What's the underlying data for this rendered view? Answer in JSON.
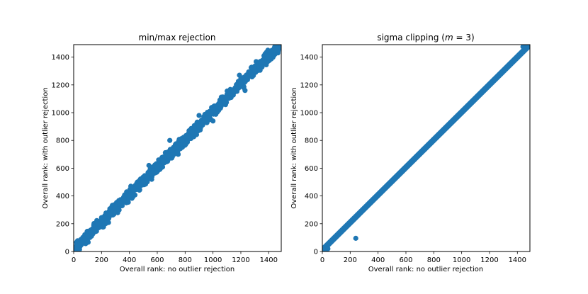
{
  "chart_data": [
    {
      "type": "scatter",
      "title": "min/max rejection",
      "xlabel": "Overall rank: no outlier rejection",
      "ylabel": "Overall rank: with outlier rejection",
      "xlim": [
        0,
        1490
      ],
      "ylim": [
        0,
        1490
      ],
      "xticks": [
        0,
        200,
        400,
        600,
        800,
        1000,
        1200,
        1400
      ],
      "yticks": [
        0,
        200,
        400,
        600,
        800,
        1000,
        1200,
        1400
      ],
      "grid": false,
      "marker_color": "#1f77b4",
      "series": [
        {
          "points_description_sample": [
            [
              0,
              15
            ],
            [
              20,
              30
            ],
            [
              40,
              45
            ],
            [
              60,
              70
            ],
            [
              80,
              90
            ],
            [
              100,
              110
            ],
            [
              120,
              140
            ],
            [
              150,
              155
            ],
            [
              180,
              200
            ],
            [
              200,
              230
            ],
            [
              230,
              240
            ],
            [
              260,
              270
            ],
            [
              300,
              310
            ],
            [
              330,
              350
            ],
            [
              360,
              380
            ],
            [
              400,
              400
            ],
            [
              430,
              450
            ],
            [
              460,
              470
            ],
            [
              500,
              500
            ],
            [
              530,
              540
            ],
            [
              560,
              560
            ],
            [
              600,
              610
            ],
            [
              640,
              650
            ],
            [
              680,
              690
            ],
            [
              700,
              730
            ],
            [
              740,
              750
            ],
            [
              780,
              800
            ],
            [
              820,
              830
            ],
            [
              850,
              860
            ],
            [
              900,
              900
            ],
            [
              940,
              950
            ],
            [
              980,
              1000
            ],
            [
              1000,
              1020
            ],
            [
              1050,
              1060
            ],
            [
              1100,
              1110
            ],
            [
              1150,
              1160
            ],
            [
              1200,
              1210
            ],
            [
              1250,
              1260
            ],
            [
              1300,
              1310
            ],
            [
              1350,
              1360
            ],
            [
              1400,
              1400
            ],
            [
              1450,
              1450
            ],
            [
              1490,
              1480
            ],
            [
              410,
              470
            ],
            [
              540,
              620
            ],
            [
              560,
              520
            ],
            [
              690,
              800
            ],
            [
              750,
              700
            ],
            [
              900,
              980
            ],
            [
              1000,
              940
            ],
            [
              1190,
              1270
            ],
            [
              1230,
              1160
            ]
          ]
        }
      ]
    },
    {
      "type": "scatter",
      "title": "sigma clipping (m = 3)",
      "title_plain": "sigma clipping (",
      "title_italic": "m",
      "title_tail": " = 3)",
      "xlabel": "Overall rank: no outlier rejection",
      "ylabel": "Overall rank: with outlier rejection",
      "xlim": [
        0,
        1490
      ],
      "ylim": [
        0,
        1490
      ],
      "xticks": [
        0,
        200,
        400,
        600,
        800,
        1000,
        1200,
        1400
      ],
      "yticks": [
        0,
        200,
        400,
        600,
        800,
        1000,
        1200,
        1400
      ],
      "grid": false,
      "marker_color": "#1f77b4",
      "series": [
        {
          "line_points": [
            [
              0,
              10
            ],
            [
              1490,
              1490
            ]
          ],
          "extra_points": [
            [
              0,
              5
            ],
            [
              10,
              15
            ],
            [
              20,
              20
            ],
            [
              30,
              15
            ],
            [
              40,
              20
            ],
            [
              240,
              95
            ],
            [
              1440,
              1475
            ],
            [
              1460,
              1478
            ],
            [
              1480,
              1480
            ]
          ]
        }
      ]
    }
  ]
}
